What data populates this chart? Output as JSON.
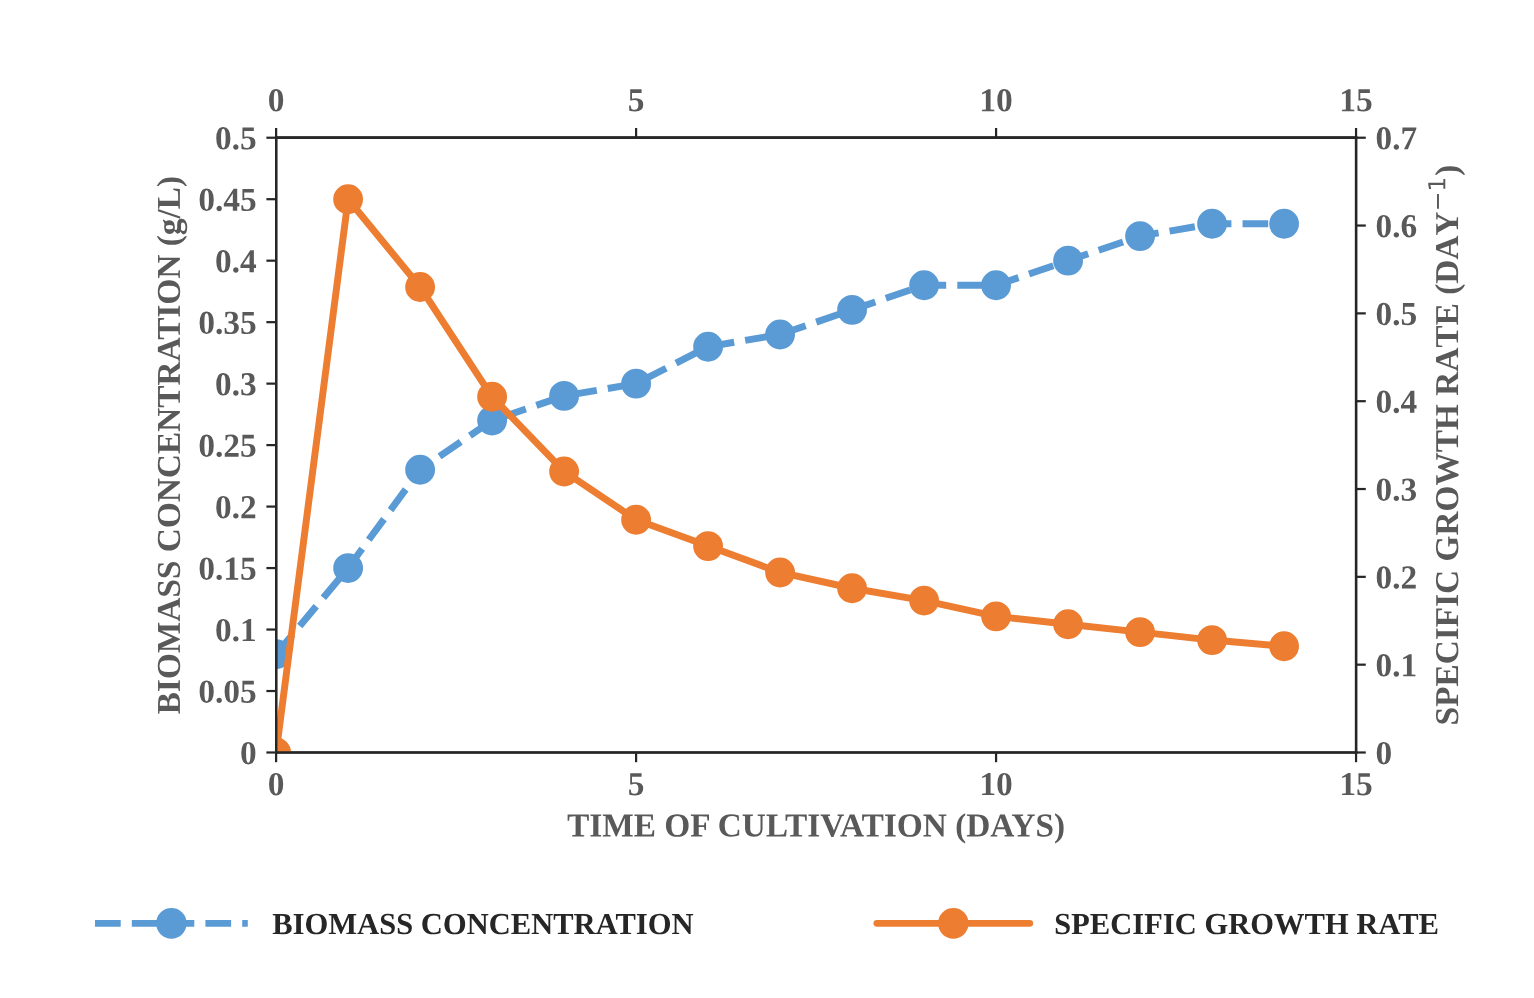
{
  "chart_data": {
    "type": "line",
    "xlabel": "TIME OF CULTIVATION (DAYS)",
    "ylabel": "BIOMASS CONCENTRATION (g/L)",
    "y2label": "SPECIFIC GROWTH RATE (DAY$^{−1}$)",
    "x": [
      0,
      1,
      2,
      3,
      4,
      5,
      6,
      7,
      8,
      9,
      10,
      11,
      12,
      13,
      14
    ],
    "series": [
      {
        "name": "BIOMASS CONCENTRATION",
        "color": "#5b9bd5",
        "line_style": "dashed",
        "values": [
          0.08,
          0.15,
          0.23,
          0.27,
          0.29,
          0.3,
          0.33,
          0.34,
          0.36,
          0.38,
          0.38,
          0.4,
          0.42,
          0.43,
          0.43
        ]
      },
      {
        "name": "SPECIFIC GROWTH RATE",
        "color": "#ed7d31",
        "line_style": "solid",
        "axis": "y2",
        "values": [
          0,
          0.63,
          0.53,
          0.405,
          0.32,
          0.265,
          0.235,
          0.205,
          0.187,
          0.173,
          0.155,
          0.146,
          0.137,
          0.128,
          0.121
        ]
      }
    ],
    "xlim": [
      0,
      15
    ],
    "xticks": [
      0,
      5,
      10,
      15
    ],
    "x2lim": [
      0,
      15
    ],
    "x2ticks": [
      0,
      5,
      10,
      15
    ],
    "ylim": [
      0,
      0.5
    ],
    "yticks": [
      0,
      0.05,
      0.1,
      0.15,
      0.2,
      0.25,
      0.3,
      0.35,
      0.4,
      0.45,
      0.5
    ],
    "y2lim": [
      0,
      0.7
    ],
    "y2ticks": [
      0,
      0.1,
      0.2,
      0.3,
      0.4,
      0.5,
      0.6,
      0.7
    ],
    "marker": "circle",
    "grid": false,
    "legend": "bottom"
  }
}
